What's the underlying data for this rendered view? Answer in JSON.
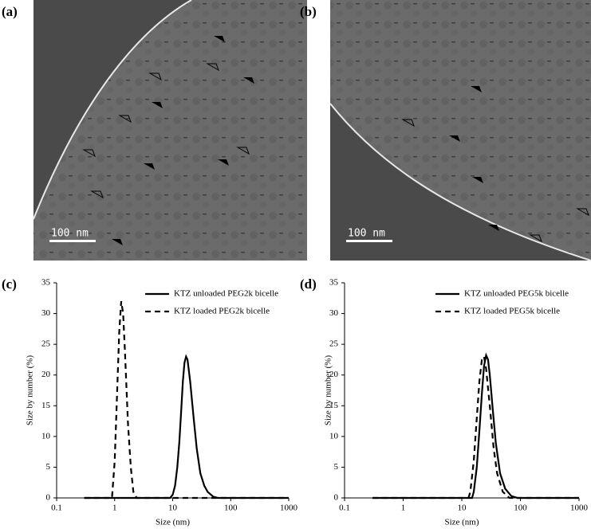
{
  "panels": [
    {
      "label": "(a)",
      "scale_bar": "100 nm"
    },
    {
      "label": "(b)",
      "scale_bar": "100 nm"
    }
  ],
  "chart_data": [
    {
      "type": "line",
      "panel_label": "(c)",
      "x_label": "Size (nm)",
      "y_label": "Size by number (%)",
      "xscale": "log",
      "xlim": [
        0.1,
        1000
      ],
      "xticks": [
        0.1,
        1,
        10,
        100,
        1000
      ],
      "ylim": [
        0,
        35
      ],
      "yticks": [
        0,
        5,
        10,
        15,
        20,
        25,
        30,
        35
      ],
      "legend": "upper right",
      "series": [
        {
          "name": "KTZ unloaded PEG2k bicelle",
          "color": "#000000",
          "line_style": "solid",
          "x": [
            0.3,
            9,
            10,
            11,
            12,
            13,
            14,
            15,
            16,
            17,
            18,
            20,
            23,
            26,
            30,
            35,
            40,
            50,
            60,
            1000
          ],
          "values": [
            0,
            0,
            0.5,
            2,
            5,
            9,
            14,
            19,
            22,
            23,
            22.5,
            19,
            13,
            8,
            4,
            2,
            1,
            0.2,
            0,
            0
          ]
        },
        {
          "name": "KTZ loaded PEG2k bicelle",
          "color": "#000000",
          "line_style": "dashed",
          "x": [
            0.3,
            0.9,
            1.0,
            1.1,
            1.2,
            1.3,
            1.4,
            1.5,
            1.7,
            1.9,
            2.1,
            2.4,
            1000
          ],
          "values": [
            0,
            0,
            6,
            17,
            27,
            32,
            30,
            24,
            12,
            5,
            1,
            0,
            0
          ]
        }
      ]
    },
    {
      "type": "line",
      "panel_label": "(d)",
      "x_label": "Size (nm)",
      "y_label": "Size by number (%)",
      "xscale": "log",
      "xlim": [
        0.1,
        1000
      ],
      "xticks": [
        0.1,
        1,
        10,
        100,
        1000
      ],
      "ylim": [
        0,
        35
      ],
      "yticks": [
        0,
        5,
        10,
        15,
        20,
        25,
        30,
        35
      ],
      "legend": "upper right",
      "series": [
        {
          "name": "KTZ unloaded PEG5k bicelle",
          "color": "#000000",
          "line_style": "solid",
          "x": [
            0.3,
            15,
            16,
            18,
            20,
            22,
            24,
            26,
            28,
            30,
            34,
            38,
            45,
            55,
            70,
            90,
            1000
          ],
          "values": [
            0,
            0,
            1,
            5,
            11,
            17,
            21.5,
            23.2,
            22.5,
            20,
            14,
            9,
            4,
            1.5,
            0.3,
            0,
            0
          ]
        },
        {
          "name": "KTZ loaded PEG5k bicelle",
          "color": "#000000",
          "line_style": "dashed",
          "x": [
            0.3,
            13,
            14,
            16,
            18,
            20,
            22,
            24,
            26,
            30,
            35,
            40,
            50,
            65,
            1000
          ],
          "values": [
            0,
            0,
            1,
            6,
            13,
            19,
            22.5,
            23,
            21,
            15,
            8,
            4,
            1,
            0,
            0
          ]
        }
      ]
    }
  ]
}
